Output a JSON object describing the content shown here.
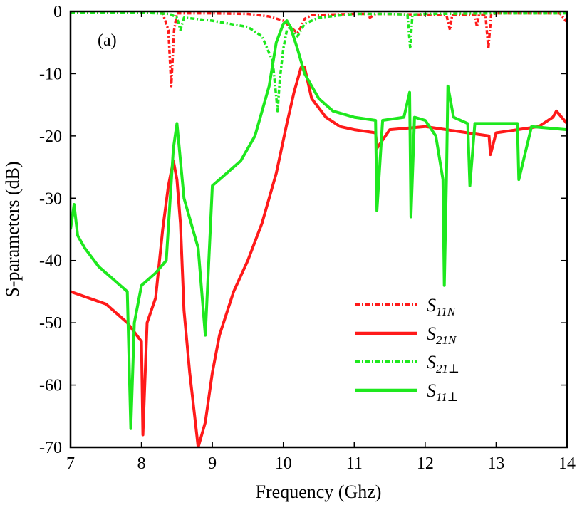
{
  "chart_data": {
    "type": "line",
    "panel_label": "(a)",
    "xlabel": "Frequency (Ghz)",
    "ylabel": "S-parameters (dB)",
    "xlim": [
      7,
      14
    ],
    "ylim": [
      -70,
      0
    ],
    "xticks": [
      7,
      8,
      9,
      10,
      11,
      12,
      13,
      14
    ],
    "yticks": [
      0,
      -10,
      -20,
      -30,
      -40,
      -50,
      -60,
      -70
    ],
    "xtick_labels": [
      "7",
      "8",
      "9",
      "10",
      "11",
      "12",
      "13",
      "14"
    ],
    "ytick_labels": [
      "0",
      "-10",
      "-20",
      "-30",
      "-40",
      "-50",
      "-60",
      "-70"
    ],
    "grid": false,
    "legend_position": "lower-right",
    "series": [
      {
        "name": "S11N",
        "label_main": "S",
        "label_sub": "11N",
        "color": "#ff1a1a",
        "style": "dashdot",
        "x": [
          7.0,
          8.0,
          8.3,
          8.38,
          8.42,
          8.46,
          8.5,
          9.0,
          9.5,
          9.8,
          10.0,
          10.1,
          10.2,
          10.25,
          10.3,
          10.4,
          11.0,
          11.2,
          11.22,
          11.3,
          12.0,
          12.3,
          12.35,
          12.38,
          12.45,
          12.7,
          12.73,
          12.76,
          12.85,
          12.89,
          12.93,
          13.0,
          13.9,
          13.98,
          14.0
        ],
        "y": [
          -0.2,
          -0.2,
          -0.3,
          -3,
          -12,
          -3,
          -0.3,
          -0.3,
          -0.4,
          -0.8,
          -1.5,
          -2.5,
          -3.5,
          -2.5,
          -1.2,
          -0.6,
          -0.4,
          -0.4,
          -1.0,
          -0.4,
          -0.5,
          -0.6,
          -3.0,
          -0.6,
          -0.5,
          -0.5,
          -2.5,
          -0.5,
          -0.5,
          -6.0,
          -0.5,
          -0.3,
          -0.3,
          -1.5,
          -0.5
        ]
      },
      {
        "name": "S21N",
        "label_main": "S",
        "label_sub": "21N",
        "color": "#ff1a1a",
        "style": "solid",
        "x": [
          7.0,
          7.5,
          7.8,
          8.0,
          8.02,
          8.08,
          8.2,
          8.3,
          8.38,
          8.45,
          8.5,
          8.55,
          8.6,
          8.68,
          8.75,
          8.8,
          8.9,
          9.0,
          9.1,
          9.3,
          9.5,
          9.7,
          9.9,
          10.05,
          10.15,
          10.25,
          10.3,
          10.4,
          10.6,
          10.8,
          11.0,
          11.3,
          11.32,
          11.5,
          12.0,
          12.3,
          12.6,
          12.9,
          12.92,
          13.0,
          13.3,
          13.6,
          13.8,
          13.85,
          14.0
        ],
        "y": [
          -45,
          -47,
          -50,
          -53,
          -68,
          -50,
          -46,
          -35,
          -28,
          -24,
          -27,
          -34,
          -48,
          -58,
          -65,
          -70,
          -66,
          -58,
          -52,
          -45,
          -40,
          -34,
          -26,
          -18,
          -13,
          -9,
          -9,
          -14,
          -17,
          -18.5,
          -19,
          -19.5,
          -22,
          -19,
          -18.5,
          -19,
          -19.5,
          -20,
          -23,
          -19.5,
          -19,
          -18.5,
          -17,
          -16,
          -18
        ]
      },
      {
        "name": "S21⊥",
        "label_main": "S",
        "label_sub": "21⊥",
        "color": "#1ee81e",
        "style": "dashdot",
        "x": [
          7.0,
          8.0,
          8.4,
          8.5,
          8.55,
          8.6,
          9.0,
          9.5,
          9.7,
          9.85,
          9.92,
          9.95,
          10.0,
          10.05,
          10.1,
          10.2,
          10.3,
          10.5,
          11.0,
          11.5,
          11.75,
          11.79,
          11.82,
          12.0,
          13.0,
          14.0
        ],
        "y": [
          -0.2,
          -0.2,
          -0.4,
          -1.0,
          -3.0,
          -1.0,
          -1.5,
          -2.5,
          -4.0,
          -8.0,
          -16.0,
          -11.0,
          -6.0,
          -3.0,
          -2.5,
          -4.0,
          -2.0,
          -1.0,
          -0.4,
          -0.4,
          -0.5,
          -6.0,
          -0.5,
          -0.4,
          -0.3,
          -0.3
        ]
      },
      {
        "name": "S11⊥",
        "label_main": "S",
        "label_sub": "11⊥",
        "color": "#1ee81e",
        "style": "solid",
        "x": [
          7.0,
          7.05,
          7.1,
          7.2,
          7.4,
          7.6,
          7.8,
          7.85,
          7.9,
          8.0,
          8.2,
          8.35,
          8.45,
          8.5,
          8.6,
          8.8,
          8.9,
          9.0,
          9.2,
          9.4,
          9.6,
          9.8,
          9.9,
          10.0,
          10.05,
          10.1,
          10.2,
          10.3,
          10.5,
          10.7,
          11.0,
          11.3,
          11.32,
          11.4,
          11.7,
          11.78,
          11.8,
          11.85,
          12.0,
          12.15,
          12.25,
          12.27,
          12.3,
          12.32,
          12.4,
          12.6,
          12.63,
          12.7,
          13.0,
          13.3,
          13.32,
          13.5,
          14.0
        ],
        "y": [
          -35,
          -31,
          -36,
          -38,
          -41,
          -43,
          -45,
          -67,
          -50,
          -44,
          -42,
          -40,
          -22,
          -18,
          -30,
          -38,
          -52,
          -28,
          -26,
          -24,
          -20,
          -12,
          -5,
          -2,
          -1.5,
          -2.5,
          -6,
          -10,
          -14,
          -16,
          -17,
          -17.5,
          -32,
          -17.5,
          -17,
          -13,
          -33,
          -17,
          -17.5,
          -20,
          -27,
          -44,
          -27,
          -12,
          -17,
          -18,
          -28,
          -18,
          -18,
          -18,
          -27,
          -18.5,
          -19
        ]
      }
    ]
  }
}
